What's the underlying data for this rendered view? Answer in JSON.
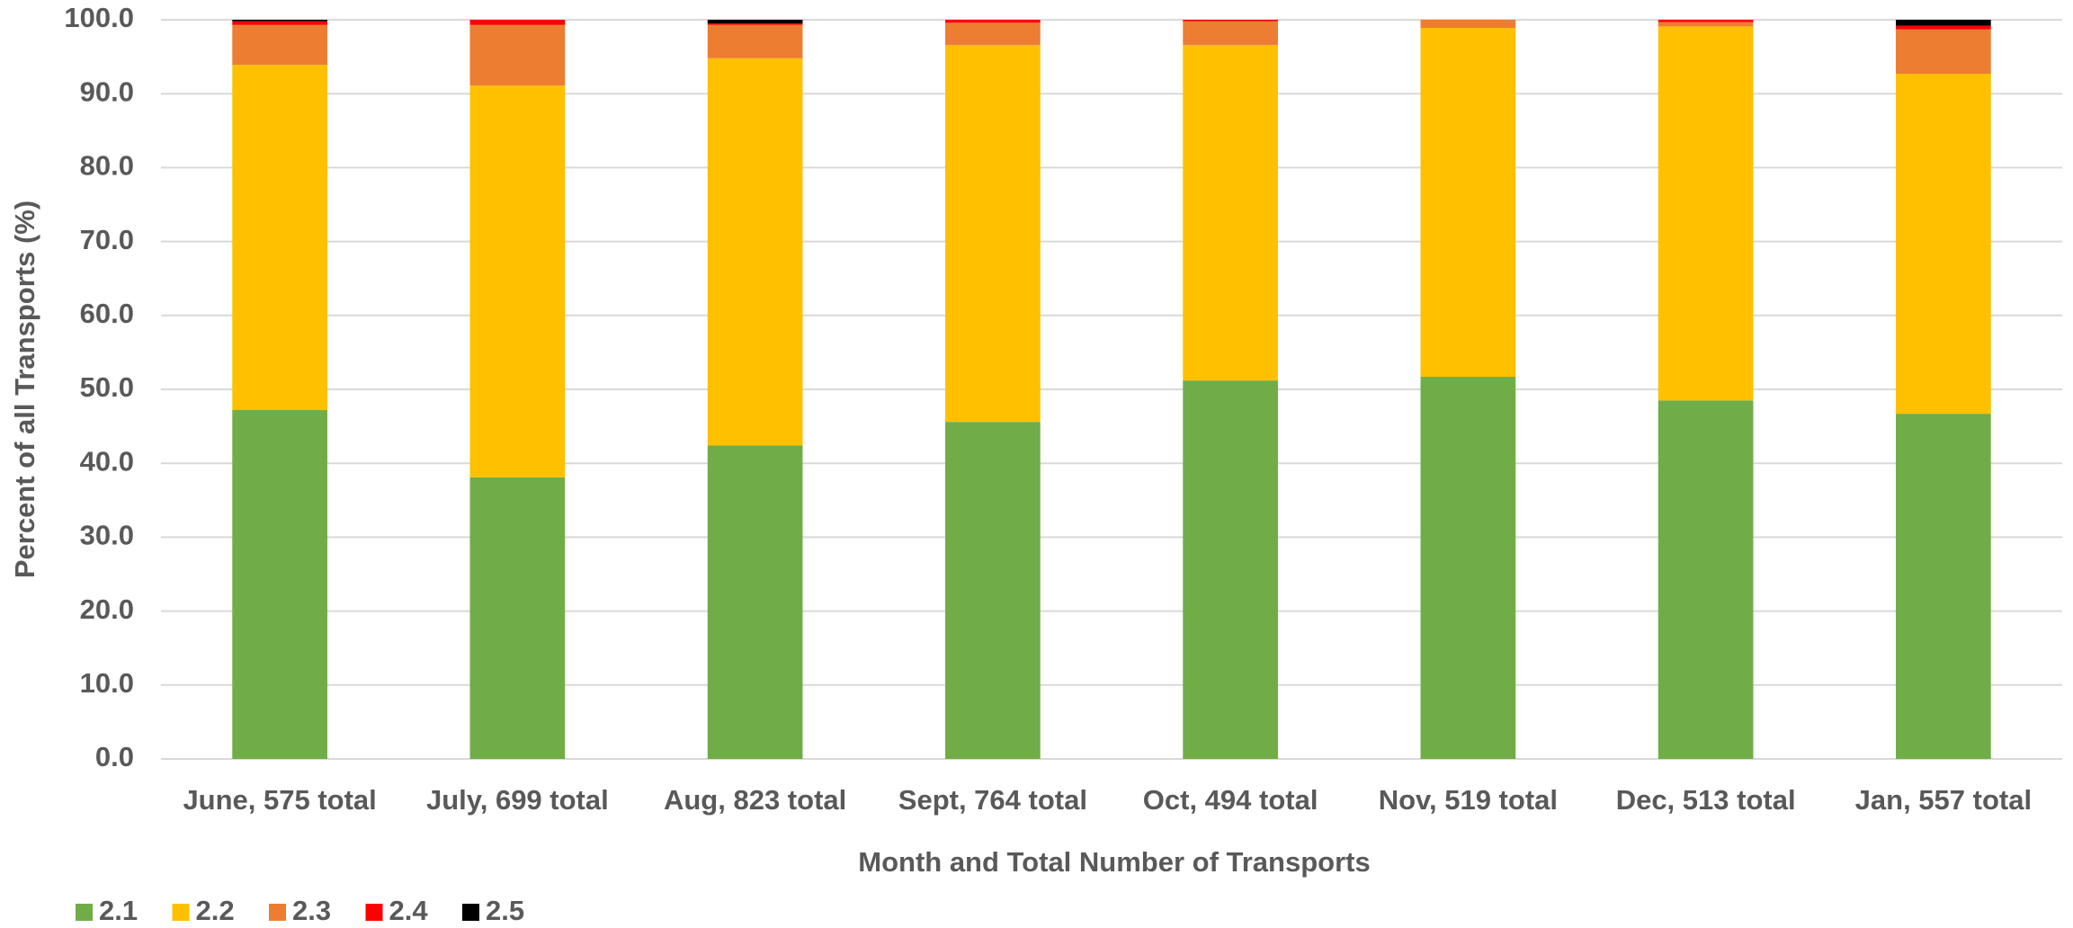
{
  "chart_data": {
    "type": "stacked_bar",
    "x_label": "Month and Total Number of Transports",
    "y_label": "Percent of all Transports (%)",
    "categories": [
      "June, 575 total",
      "July, 699 total",
      "Aug, 823 total",
      "Sept, 764 total",
      "Oct, 494 total",
      "Nov, 519 total",
      "Dec, 513 total",
      "Jan, 557 total"
    ],
    "series": [
      {
        "name": "2.1",
        "color": "#70ad47",
        "values": [
          47.2,
          38.1,
          42.4,
          45.6,
          51.2,
          51.7,
          48.5,
          46.7
        ]
      },
      {
        "name": "2.2",
        "color": "#ffc000",
        "values": [
          46.7,
          53.0,
          52.4,
          51.0,
          45.4,
          47.2,
          50.6,
          46.0
        ]
      },
      {
        "name": "2.3",
        "color": "#ed7d31",
        "values": [
          5.4,
          8.2,
          4.5,
          3.0,
          3.2,
          1.1,
          0.6,
          6.0
        ]
      },
      {
        "name": "2.4",
        "color": "#ff0000",
        "values": [
          0.5,
          0.7,
          0.2,
          0.4,
          0.2,
          0,
          0.3,
          0.5
        ]
      },
      {
        "name": "2.5",
        "color": "#000000",
        "values": [
          0.2,
          0,
          0.5,
          0,
          0,
          0,
          0,
          0.8
        ]
      }
    ],
    "ylim": [
      0,
      100
    ],
    "yticks": [
      {
        "value": 0,
        "label": "0.0"
      },
      {
        "value": 10,
        "label": "10.0"
      },
      {
        "value": 20,
        "label": "20.0"
      },
      {
        "value": 30,
        "label": "30.0"
      },
      {
        "value": 40,
        "label": "40.0"
      },
      {
        "value": 50,
        "label": "50.0"
      },
      {
        "value": 60,
        "label": "60.0"
      },
      {
        "value": 70,
        "label": "70.0"
      },
      {
        "value": 80,
        "label": "80.0"
      },
      {
        "value": 90,
        "label": "90.0"
      },
      {
        "value": 100,
        "label": "100.0"
      }
    ],
    "grid": true,
    "legend": "bottom-left"
  }
}
